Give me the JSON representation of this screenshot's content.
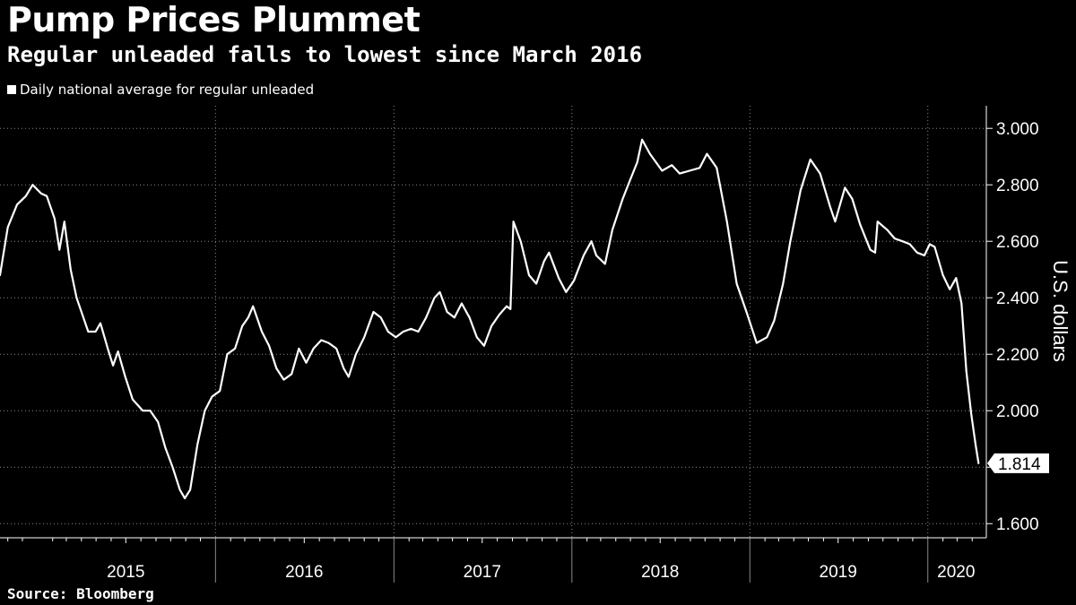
{
  "header": {
    "title": "Pump Prices Plummet",
    "subtitle": "Regular unleaded falls to lowest since March 2016"
  },
  "legend": {
    "label": "Daily national average for regular unleaded"
  },
  "footer": {
    "source": "Source: Bloomberg"
  },
  "colors": {
    "background": "#000000",
    "line": "#ffffff",
    "grid": "#8a8a8a",
    "text": "#ffffff"
  },
  "chart_data": {
    "type": "line",
    "title": "Pump Prices Plummet",
    "subtitle": "Regular unleaded falls to lowest since March 2016",
    "ylabel": "U.S. dollars",
    "ylim": [
      1.55,
      3.08
    ],
    "xlim": [
      "2014-10-16",
      "2020-04-30"
    ],
    "y_axis_position": "right",
    "yticks": [
      1.6,
      1.8,
      2.0,
      2.2,
      2.4,
      2.6,
      2.8,
      3.0
    ],
    "ytick_labels": [
      "1.600",
      "",
      "2.000",
      "2.200",
      "2.400",
      "2.600",
      "2.800",
      "3.000"
    ],
    "year_boundaries": [
      "2016-01-01",
      "2017-01-01",
      "2018-01-01",
      "2019-01-01",
      "2020-01-01"
    ],
    "xtick_labels": [
      {
        "label": "2015",
        "x": "2015-07-01"
      },
      {
        "label": "2016",
        "x": "2016-07-01"
      },
      {
        "label": "2017",
        "x": "2017-07-01"
      },
      {
        "label": "2018",
        "x": "2018-07-01"
      },
      {
        "label": "2019",
        "x": "2019-07-01"
      },
      {
        "label": "2020",
        "x": "2020-02-28"
      }
    ],
    "grid": "dotted",
    "last_value_label": "1.814",
    "series": [
      {
        "name": "Daily national average for regular unleaded",
        "points": [
          [
            "2014-10-16",
            2.48
          ],
          [
            "2014-11-01",
            2.65
          ],
          [
            "2014-11-20",
            2.73
          ],
          [
            "2014-12-08",
            2.76
          ],
          [
            "2014-12-22",
            2.8
          ],
          [
            "2015-01-08",
            2.77
          ],
          [
            "2015-01-20",
            2.76
          ],
          [
            "2015-02-05",
            2.68
          ],
          [
            "2015-02-15",
            2.57
          ],
          [
            "2015-02-25",
            2.67
          ],
          [
            "2015-03-10",
            2.5
          ],
          [
            "2015-03-22",
            2.4
          ],
          [
            "2015-04-05",
            2.33
          ],
          [
            "2015-04-15",
            2.28
          ],
          [
            "2015-04-30",
            2.28
          ],
          [
            "2015-05-10",
            2.31
          ],
          [
            "2015-05-25",
            2.22
          ],
          [
            "2015-06-05",
            2.16
          ],
          [
            "2015-06-15",
            2.21
          ],
          [
            "2015-06-30",
            2.12
          ],
          [
            "2015-07-15",
            2.04
          ],
          [
            "2015-08-05",
            2.0
          ],
          [
            "2015-08-20",
            2.0
          ],
          [
            "2015-09-05",
            1.96
          ],
          [
            "2015-09-20",
            1.87
          ],
          [
            "2015-10-05",
            1.8
          ],
          [
            "2015-10-20",
            1.72
          ],
          [
            "2015-10-30",
            1.69
          ],
          [
            "2015-11-10",
            1.72
          ],
          [
            "2015-11-25",
            1.88
          ],
          [
            "2015-12-10",
            2.0
          ],
          [
            "2015-12-25",
            2.05
          ],
          [
            "2016-01-10",
            2.07
          ],
          [
            "2016-01-25",
            2.2
          ],
          [
            "2016-02-10",
            2.22
          ],
          [
            "2016-02-25",
            2.3
          ],
          [
            "2016-03-08",
            2.33
          ],
          [
            "2016-03-18",
            2.37
          ],
          [
            "2016-04-05",
            2.28
          ],
          [
            "2016-04-20",
            2.23
          ],
          [
            "2016-05-05",
            2.15
          ],
          [
            "2016-05-20",
            2.11
          ],
          [
            "2016-06-05",
            2.13
          ],
          [
            "2016-06-20",
            2.22
          ],
          [
            "2016-07-05",
            2.17
          ],
          [
            "2016-07-20",
            2.22
          ],
          [
            "2016-08-05",
            2.25
          ],
          [
            "2016-08-20",
            2.24
          ],
          [
            "2016-09-05",
            2.22
          ],
          [
            "2016-09-20",
            2.15
          ],
          [
            "2016-09-30",
            2.12
          ],
          [
            "2016-10-15",
            2.2
          ],
          [
            "2016-11-01",
            2.26
          ],
          [
            "2016-11-20",
            2.35
          ],
          [
            "2016-12-05",
            2.33
          ],
          [
            "2016-12-20",
            2.28
          ],
          [
            "2017-01-05",
            2.26
          ],
          [
            "2017-01-20",
            2.28
          ],
          [
            "2017-02-05",
            2.29
          ],
          [
            "2017-02-20",
            2.28
          ],
          [
            "2017-03-08",
            2.33
          ],
          [
            "2017-03-25",
            2.4
          ],
          [
            "2017-04-05",
            2.42
          ],
          [
            "2017-04-20",
            2.35
          ],
          [
            "2017-05-05",
            2.33
          ],
          [
            "2017-05-20",
            2.38
          ],
          [
            "2017-06-05",
            2.33
          ],
          [
            "2017-06-20",
            2.26
          ],
          [
            "2017-07-05",
            2.23
          ],
          [
            "2017-07-20",
            2.3
          ],
          [
            "2017-08-05",
            2.34
          ],
          [
            "2017-08-20",
            2.37
          ],
          [
            "2017-08-28",
            2.36
          ],
          [
            "2017-09-03",
            2.67
          ],
          [
            "2017-09-18",
            2.6
          ],
          [
            "2017-10-05",
            2.48
          ],
          [
            "2017-10-20",
            2.45
          ],
          [
            "2017-11-05",
            2.53
          ],
          [
            "2017-11-15",
            2.56
          ],
          [
            "2017-12-05",
            2.47
          ],
          [
            "2017-12-20",
            2.42
          ],
          [
            "2018-01-05",
            2.46
          ],
          [
            "2018-01-25",
            2.55
          ],
          [
            "2018-02-10",
            2.6
          ],
          [
            "2018-02-20",
            2.55
          ],
          [
            "2018-03-10",
            2.52
          ],
          [
            "2018-03-25",
            2.64
          ],
          [
            "2018-04-15",
            2.75
          ],
          [
            "2018-05-01",
            2.82
          ],
          [
            "2018-05-15",
            2.88
          ],
          [
            "2018-05-25",
            2.96
          ],
          [
            "2018-06-10",
            2.91
          ],
          [
            "2018-07-05",
            2.85
          ],
          [
            "2018-07-25",
            2.87
          ],
          [
            "2018-08-10",
            2.84
          ],
          [
            "2018-08-30",
            2.85
          ],
          [
            "2018-09-20",
            2.86
          ],
          [
            "2018-10-05",
            2.91
          ],
          [
            "2018-10-25",
            2.86
          ],
          [
            "2018-11-15",
            2.67
          ],
          [
            "2018-12-05",
            2.45
          ],
          [
            "2018-12-25",
            2.35
          ],
          [
            "2019-01-15",
            2.24
          ],
          [
            "2019-02-05",
            2.26
          ],
          [
            "2019-02-20",
            2.32
          ],
          [
            "2019-03-10",
            2.45
          ],
          [
            "2019-03-25",
            2.6
          ],
          [
            "2019-04-15",
            2.78
          ],
          [
            "2019-05-05",
            2.89
          ],
          [
            "2019-05-25",
            2.84
          ],
          [
            "2019-06-15",
            2.72
          ],
          [
            "2019-06-25",
            2.67
          ],
          [
            "2019-07-15",
            2.79
          ],
          [
            "2019-07-30",
            2.75
          ],
          [
            "2019-08-15",
            2.66
          ],
          [
            "2019-09-05",
            2.57
          ],
          [
            "2019-09-15",
            2.56
          ],
          [
            "2019-09-20",
            2.67
          ],
          [
            "2019-10-10",
            2.64
          ],
          [
            "2019-10-25",
            2.61
          ],
          [
            "2019-11-10",
            2.6
          ],
          [
            "2019-11-25",
            2.59
          ],
          [
            "2019-12-10",
            2.56
          ],
          [
            "2019-12-25",
            2.55
          ],
          [
            "2020-01-05",
            2.59
          ],
          [
            "2020-01-15",
            2.58
          ],
          [
            "2020-02-01",
            2.48
          ],
          [
            "2020-02-15",
            2.43
          ],
          [
            "2020-02-28",
            2.47
          ],
          [
            "2020-03-10",
            2.38
          ],
          [
            "2020-03-20",
            2.14
          ],
          [
            "2020-03-30",
            1.99
          ],
          [
            "2020-04-08",
            1.88
          ],
          [
            "2020-04-14",
            1.814
          ]
        ]
      }
    ]
  }
}
